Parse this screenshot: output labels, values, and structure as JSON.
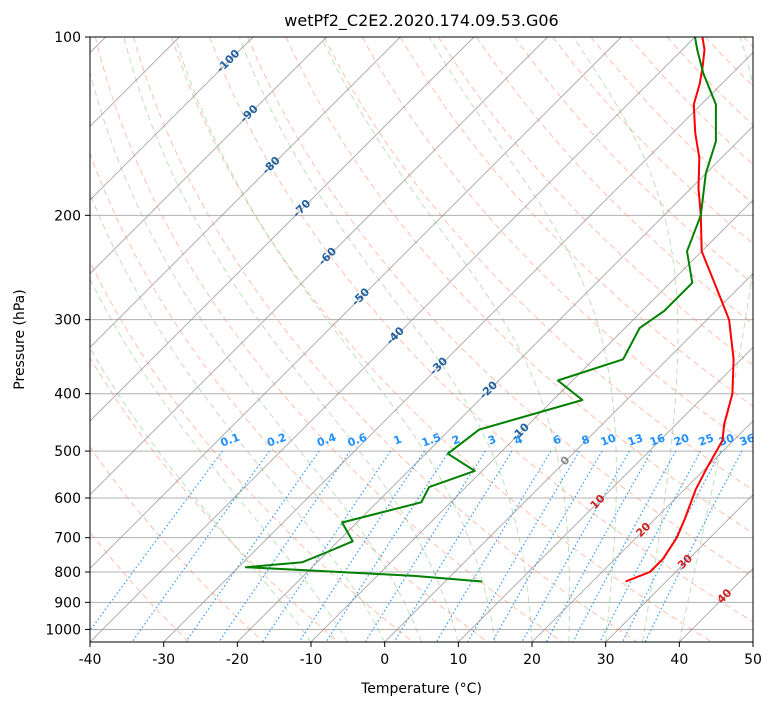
{
  "chart_data": {
    "type": "line",
    "chart_kind": "skew-t log-p diagram",
    "title": "wetPf2_C2E2.2020.174.09.53.G06",
    "xlabel": "Temperature (°C)",
    "ylabel": "Pressure (hPa)",
    "xlim": [
      -40,
      50
    ],
    "ylim": [
      1050,
      100
    ],
    "y_scale": "log",
    "grid": true,
    "x_ticks": [
      -40,
      -30,
      -20,
      -10,
      0,
      10,
      20,
      30,
      40,
      50
    ],
    "y_ticks": [
      100,
      200,
      300,
      400,
      500,
      600,
      700,
      800,
      900,
      1000
    ],
    "colors": {
      "temperature": "#ff0000",
      "dewpoint": "#008000",
      "dry_adiabat": "#ff8c69",
      "moist_adiabat": "#7fbf7f",
      "mixing_ratio": "#1e90ff",
      "isotherm": "#555555",
      "label_isotherm_neg": "#1f5f9f",
      "label_isotherm_pos": "#cc2222",
      "label_mixing_ratio": "#1e90ff"
    },
    "series": [
      {
        "role": "temperature",
        "color": "#ff0000",
        "points": [
          [
            24.5,
            830
          ],
          [
            26.5,
            800
          ],
          [
            26.5,
            760
          ],
          [
            25.5,
            700
          ],
          [
            24,
            650
          ],
          [
            21.5,
            580
          ],
          [
            20,
            530
          ],
          [
            18.5,
            480
          ],
          [
            16.5,
            450
          ],
          [
            13.5,
            400
          ],
          [
            9,
            350
          ],
          [
            3,
            300
          ],
          [
            -4,
            260
          ],
          [
            -10,
            230
          ],
          [
            -15,
            200
          ],
          [
            -19,
            180
          ],
          [
            -23,
            160
          ],
          [
            -27,
            145
          ],
          [
            -31,
            130
          ],
          [
            -33,
            120
          ],
          [
            -35,
            112
          ],
          [
            -37,
            105
          ],
          [
            -39,
            100
          ]
        ]
      },
      {
        "role": "dewpoint",
        "color": "#008000",
        "points": [
          [
            5,
            830
          ],
          [
            -5,
            812
          ],
          [
            -20,
            795
          ],
          [
            -29,
            785
          ],
          [
            -22,
            770
          ],
          [
            -20,
            740
          ],
          [
            -18,
            710
          ],
          [
            -22,
            660
          ],
          [
            -14,
            610
          ],
          [
            -15,
            575
          ],
          [
            -11,
            540
          ],
          [
            -17,
            505
          ],
          [
            -16,
            460
          ],
          [
            -6,
            410
          ],
          [
            -12,
            380
          ],
          [
            -6,
            350
          ],
          [
            -8,
            310
          ],
          [
            -7,
            290
          ],
          [
            -7,
            260
          ],
          [
            -12,
            230
          ],
          [
            -15,
            200
          ],
          [
            -20,
            170
          ],
          [
            -23,
            150
          ],
          [
            -28,
            130
          ],
          [
            -34,
            115
          ],
          [
            -38,
            105
          ],
          [
            -40,
            100
          ]
        ]
      }
    ],
    "isotherm_labels": [
      "-100",
      "-90",
      "-80",
      "-70",
      "-60",
      "-50",
      "-40",
      "-30",
      "-20",
      "-10",
      "0",
      "10",
      "20",
      "30",
      "40"
    ],
    "mixing_ratio_labels": [
      "0.1",
      "0.2",
      "0.4",
      "0.6",
      "1",
      "1.5",
      "2",
      "3",
      "4",
      "6",
      "8",
      "10",
      "13",
      "16",
      "20",
      "25",
      "30",
      "36"
    ],
    "mixing_ratio_values": [
      0.1,
      0.2,
      0.4,
      0.6,
      1,
      1.5,
      2,
      3,
      4,
      6,
      8,
      10,
      13,
      16,
      20,
      25,
      30,
      36
    ]
  }
}
